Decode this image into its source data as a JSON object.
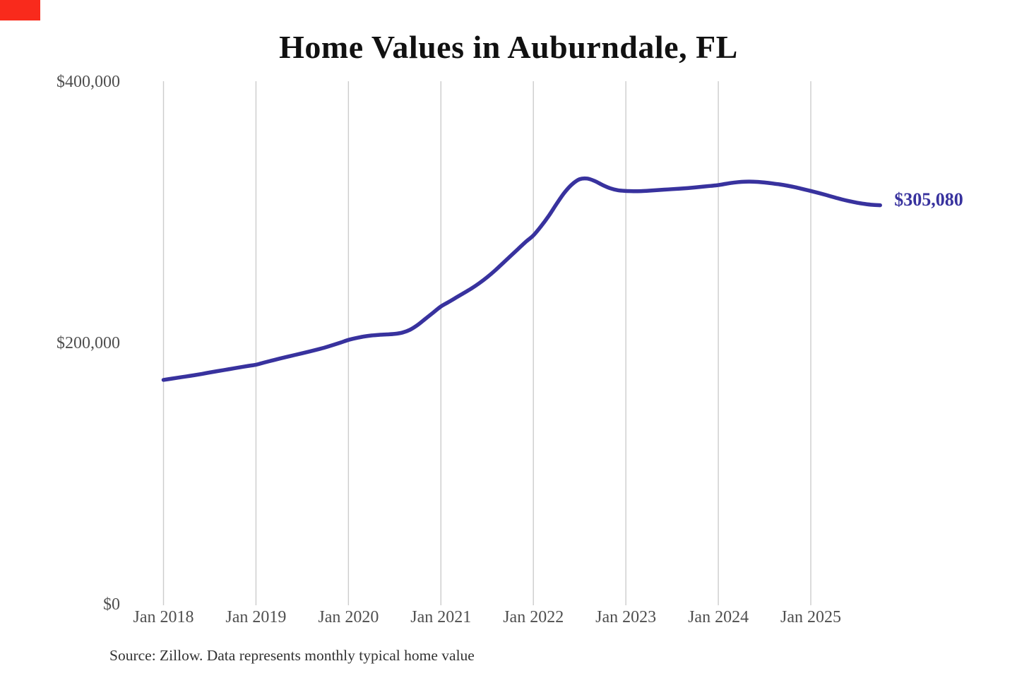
{
  "page": {
    "title": "Home Values in Auburndale, FL",
    "source_note": "Source: Zillow. Data represents monthly typical home value"
  },
  "marker": {
    "color": "#f92a1c"
  },
  "chart_data": {
    "type": "line",
    "title": "Home Values in Auburndale, FL",
    "series_name": "Monthly typical home value",
    "x_start": "Jan 2018",
    "x_end": "Oct 2025",
    "x_tick_labels": [
      "Jan 2018",
      "Jan 2019",
      "Jan 2020",
      "Jan 2021",
      "Jan 2022",
      "Jan 2023",
      "Jan 2024",
      "Jan 2025"
    ],
    "y_ticks": [
      {
        "label": "$0",
        "value": 0
      },
      {
        "label": "$200,000",
        "value": 200000
      },
      {
        "label": "$400,000",
        "value": 400000
      }
    ],
    "ylim": [
      0,
      400000
    ],
    "grid": "vertical-only",
    "legend": "none",
    "end_label": "$305,080",
    "end_value": 305080,
    "values": [
      171400,
      172300,
      173200,
      174100,
      175000,
      176000,
      177100,
      178100,
      179100,
      180100,
      181100,
      182100,
      183000,
      184600,
      186100,
      187600,
      189000,
      190400,
      191800,
      193200,
      194700,
      196300,
      198100,
      200000,
      202000,
      203400,
      204600,
      205400,
      205900,
      206200,
      206600,
      207600,
      209800,
      213500,
      218200,
      222900,
      227600,
      231000,
      234500,
      238000,
      241500,
      245500,
      250000,
      255000,
      260500,
      266000,
      271500,
      277000,
      282000,
      289000,
      297000,
      306000,
      314500,
      321000,
      325000,
      325500,
      323500,
      320500,
      318000,
      316500,
      316000,
      315800,
      315900,
      316200,
      316600,
      317000,
      317400,
      317800,
      318200,
      318700,
      319300,
      319900,
      320500,
      321500,
      322400,
      323000,
      323200,
      323000,
      322500,
      321800,
      321000,
      320000,
      318800,
      317400,
      316000,
      314500,
      312900,
      311200,
      309600,
      308200,
      307000,
      306100,
      305400,
      305080
    ],
    "colors": {
      "line": "#38329e",
      "end_label_text": "#38329e",
      "grid": "#cccccc",
      "tick_text": "#4f4f4f",
      "title_text": "#111111",
      "source_text": "#333333"
    },
    "source": "Source: Zillow. Data represents monthly typical home value"
  }
}
